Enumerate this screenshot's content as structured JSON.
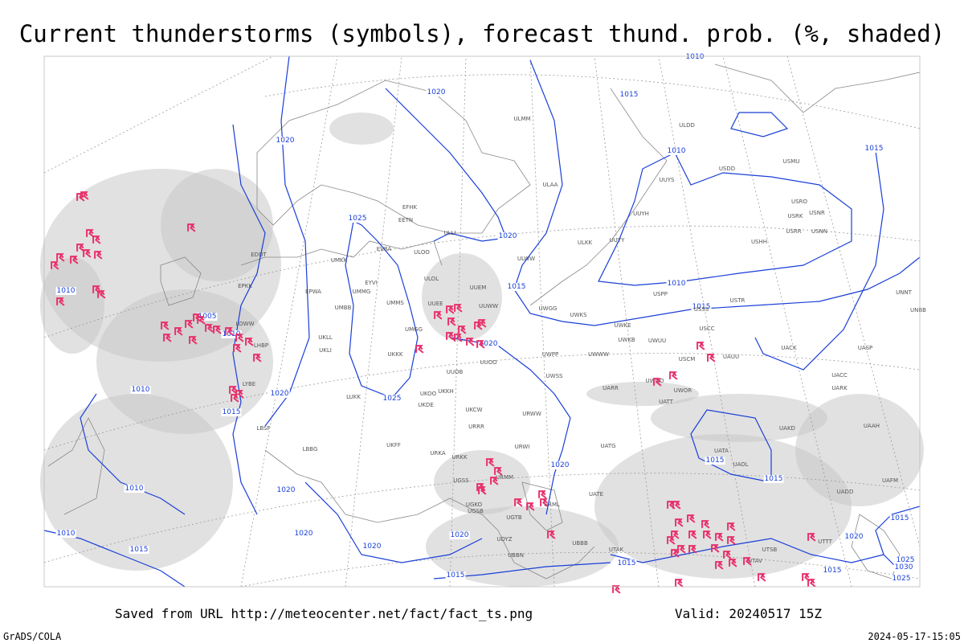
{
  "header": {
    "title": "Current thunderstorms (symbols), forecast thund. prob. (%, shaded)"
  },
  "isobar_labels": [
    1020,
    1010,
    1015,
    1020,
    1010,
    1015,
    1025,
    1020,
    1015,
    1010,
    1015,
    1010,
    1005,
    1010,
    1020,
    1010,
    1020,
    1025,
    1015,
    1015,
    1020,
    1015,
    1010,
    1020,
    1020,
    1020,
    1020,
    1010,
    1015,
    1015,
    1015,
    1015,
    1020,
    1015,
    1025,
    1030,
    1025
  ],
  "station_labels": [
    "ULMM",
    "ULDD",
    "USDD",
    "USMU",
    "UUYS",
    "USRO",
    "USRK",
    "USNR",
    "USRR",
    "USNN",
    "UUYH",
    "UUYY",
    "ULKK",
    "USHH",
    "ULWW",
    "ULAA",
    "EFHK",
    "EETN",
    "ULLI",
    "EVRA",
    "ULOO",
    "UMKK",
    "ULOL",
    "UUEM",
    "EPWA",
    "UMMG",
    "UMMS",
    "UMGG",
    "UUEE",
    "UUWW",
    "UWGG",
    "UWKS",
    "USPP",
    "USTR",
    "USSS",
    "UMBB",
    "UWKE",
    "UWKB",
    "UWUU",
    "USCC",
    "UNNT",
    "UNBB",
    "UKLL",
    "UKLI",
    "UKKK",
    "UWPP",
    "UWWW",
    "USCM",
    "UAUU",
    "UACK",
    "UASP",
    "UUOO",
    "UUOB",
    "UWSS",
    "UACC",
    "UARR",
    "UWOO",
    "UWOR",
    "UATT",
    "UARK",
    "UKKH",
    "UKOO",
    "UKDE",
    "LUKK",
    "UKCW",
    "URWW",
    "URRR",
    "LBSF",
    "UAKD",
    "UAAH",
    "UKFF",
    "LBBG",
    "URWI",
    "UATG",
    "UATA",
    "URKA",
    "URKK",
    "UAOL",
    "UAFM",
    "UGSS",
    "URMM",
    "UATE",
    "UADD",
    "URML",
    "UGKO",
    "UGSB",
    "UGTB",
    "UBBN",
    "UDYZ",
    "UBBB",
    "UTAK",
    "UTAV",
    "UTSB",
    "UTTT",
    "EDDT",
    "EPKK",
    "LOWW",
    "LHBP",
    "LYBE",
    "EYVI"
  ],
  "footer": {
    "source": "Saved from URL http://meteocenter.net/fact/fact_ts.png",
    "valid": "Valid: 20240517 15Z",
    "software": "GrADS/COLA",
    "timestamp": "2024-05-17-15:05"
  }
}
